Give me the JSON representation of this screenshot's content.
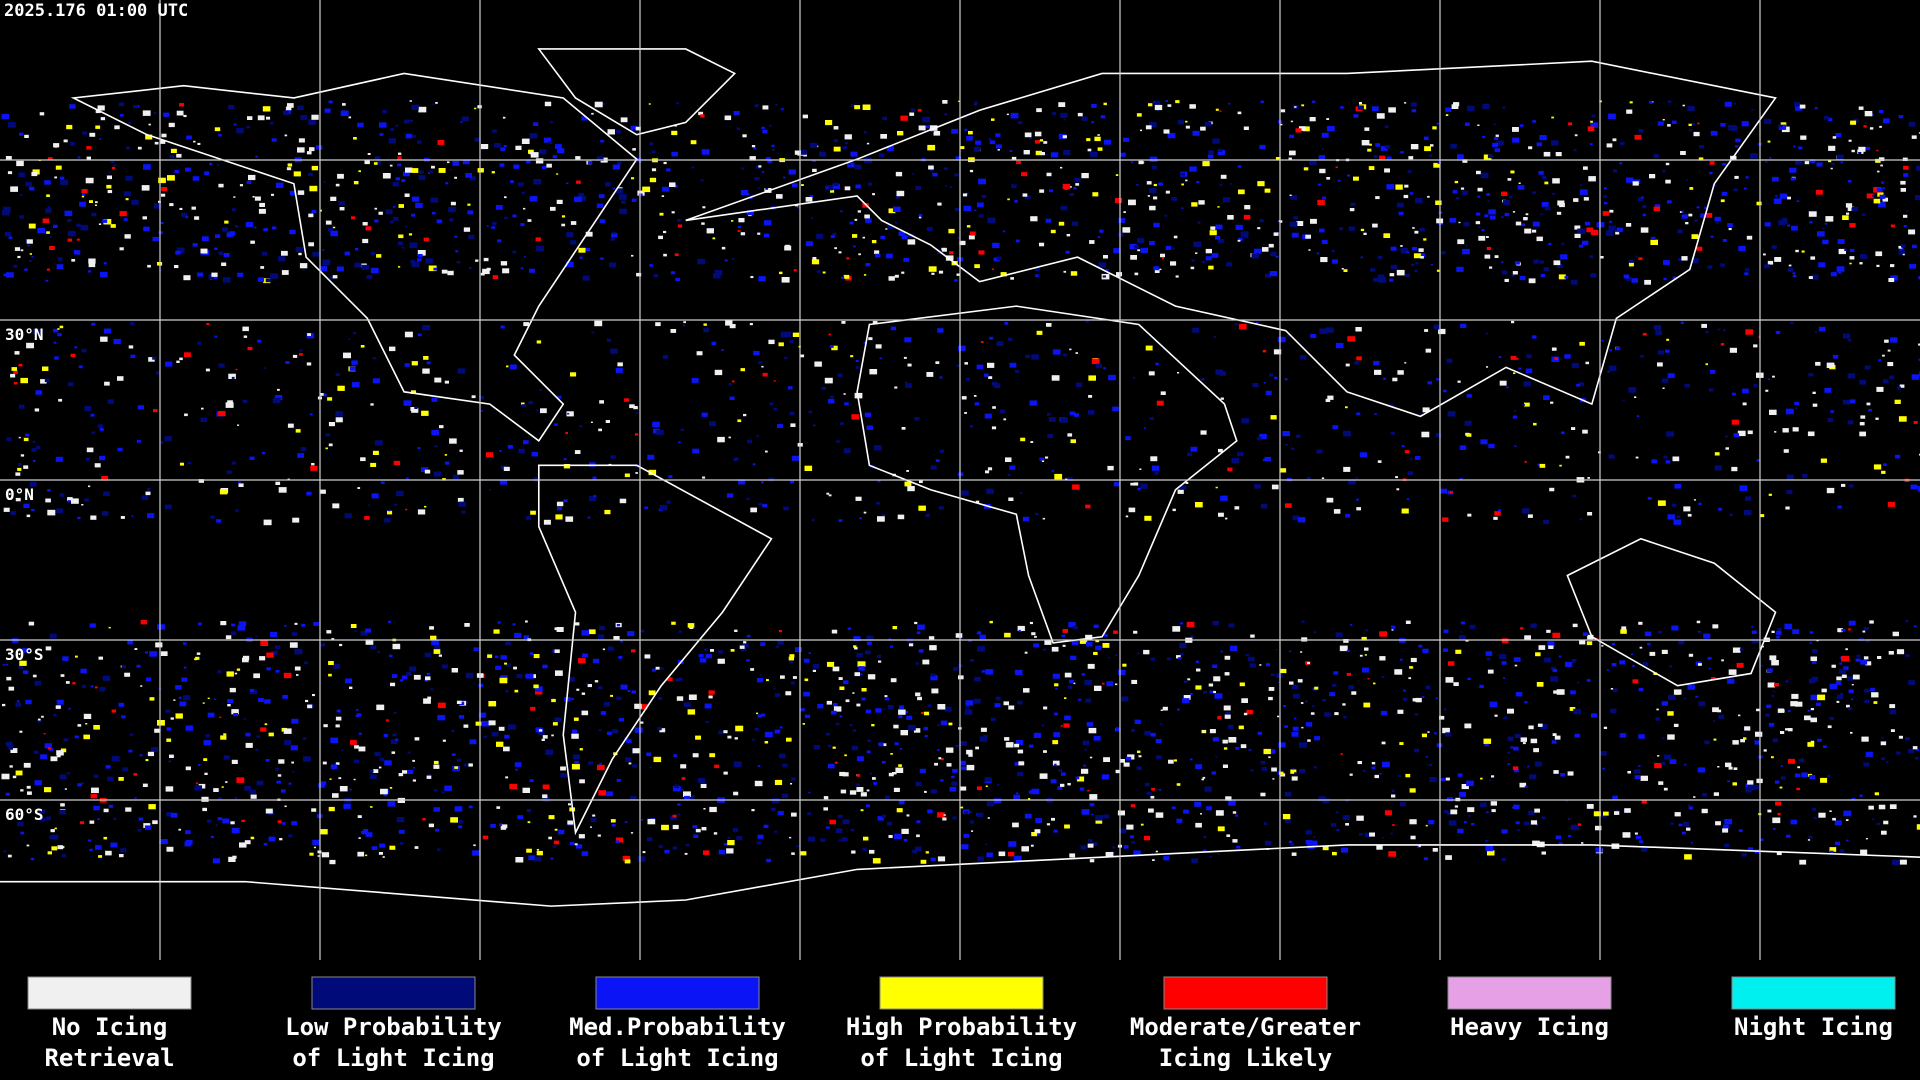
{
  "timestamp": "2025.176 01:00 UTC",
  "latitude_labels": [
    "30°N",
    "0°N",
    "30°S",
    "60°S"
  ],
  "legend": [
    {
      "label_lines": [
        "No Icing",
        "Retrieval"
      ],
      "color": "#f0f0f0"
    },
    {
      "label_lines": [
        "Low Probability",
        "of Light Icing"
      ],
      "color": "#000a78"
    },
    {
      "label_lines": [
        "Med.Probability",
        "of Light Icing"
      ],
      "color": "#0a14f5"
    },
    {
      "label_lines": [
        "High Probability",
        "of Light Icing"
      ],
      "color": "#ffff00"
    },
    {
      "label_lines": [
        "Moderate/Greater",
        "Icing Likely"
      ],
      "color": "#ff0000"
    },
    {
      "label_lines": [
        "Heavy Icing"
      ],
      "color": "#e6a0e6"
    },
    {
      "label_lines": [
        "Night Icing"
      ],
      "color": "#00f0f0"
    }
  ]
}
